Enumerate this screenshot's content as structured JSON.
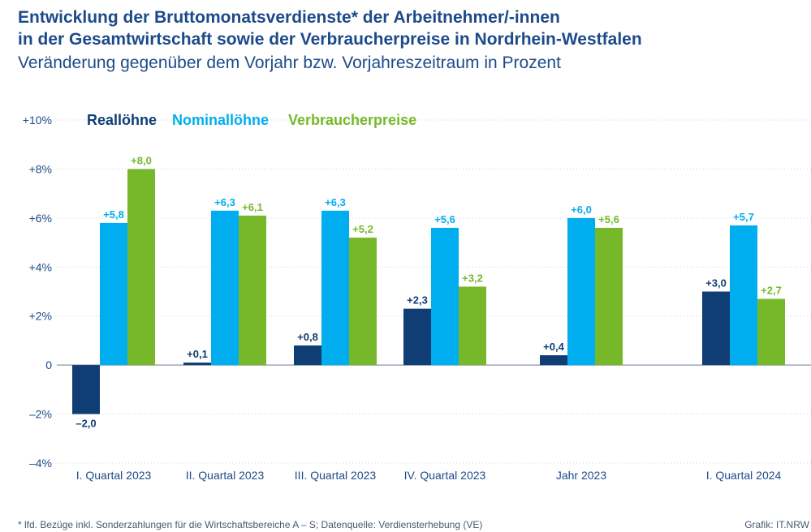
{
  "title_line1": "Entwicklung der Bruttomonatsverdienste* der Arbeitnehmer/-innen",
  "title_line2": "in der Gesamtwirtschaft sowie der Verbraucherpreise in Nordrhein-Westfalen",
  "subtitle": "Veränderung gegenüber dem Vorjahr bzw. Vorjahreszeitraum in Prozent",
  "footnote": "* lfd. Bezüge inkl. Sonderzahlungen für die Wirtschaftsbereiche A – S; Datenquelle: Verdiensterhebung (VE)",
  "credit": "Grafik: IT.NRW",
  "chart_data": {
    "type": "bar",
    "categories": [
      "I. Quartal 2023",
      "II. Quartal 2023",
      "III. Quartal 2023",
      "IV. Quartal 2023",
      "Jahr 2023",
      "I. Quartal 2024"
    ],
    "series": [
      {
        "name": "Reallöhne",
        "color": "#0f3d74",
        "values": [
          -2.0,
          0.1,
          0.8,
          2.3,
          0.4,
          3.0
        ],
        "labels": [
          "–2,0",
          "+0,1",
          "+0,8",
          "+2,3",
          "+0,4",
          "+3,0"
        ]
      },
      {
        "name": "Nominallöhne",
        "color": "#00aeef",
        "values": [
          5.8,
          6.3,
          6.3,
          5.6,
          6.0,
          5.7
        ],
        "labels": [
          "+5,8",
          "+6,3",
          "+6,3",
          "+5,6",
          "+6,0",
          "+5,7"
        ]
      },
      {
        "name": "Verbraucherpreise",
        "color": "#76b82a",
        "values": [
          8.0,
          6.1,
          5.2,
          3.2,
          5.6,
          2.7
        ],
        "labels": [
          "+8,0",
          "+6,1",
          "+5,2",
          "+3,2",
          "+5,6",
          "+2,7"
        ]
      }
    ],
    "yticks": [
      -4,
      -2,
      0,
      2,
      4,
      6,
      8,
      10
    ],
    "ytick_labels": [
      "–4%",
      "–2%",
      "0",
      "+2%",
      "+4%",
      "+6%",
      "+8%",
      "+10%"
    ],
    "ylim": [
      -4,
      10
    ],
    "grid": true,
    "legend_position": "top"
  }
}
